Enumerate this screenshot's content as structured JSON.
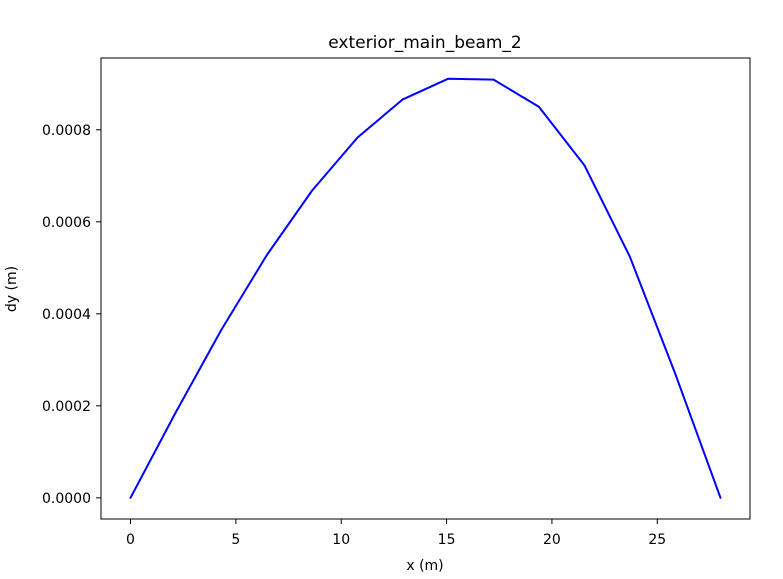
{
  "chart_data": {
    "type": "line",
    "title": "exterior_main_beam_2",
    "xlabel": "x (m)",
    "ylabel": "dy (m)",
    "xlim": [
      -1.4,
      29.4
    ],
    "ylim": [
      -4.6e-05,
      0.000956
    ],
    "xticks": [
      0,
      5,
      10,
      15,
      20,
      25
    ],
    "xtick_labels": [
      "0",
      "5",
      "10",
      "15",
      "20",
      "25"
    ],
    "yticks": [
      0.0,
      0.0002,
      0.0004,
      0.0006,
      0.0008
    ],
    "ytick_labels": [
      "0.0000",
      "0.0002",
      "0.0004",
      "0.0006",
      "0.0008"
    ],
    "grid": false,
    "series": [
      {
        "color": "#0000ff",
        "x": [
          0.0,
          2.15,
          4.31,
          6.46,
          8.62,
          10.77,
          12.92,
          15.08,
          17.23,
          19.38,
          21.54,
          23.69,
          25.85,
          28.0
        ],
        "y": [
          0.0,
          0.000186,
          0.000365,
          0.000527,
          0.000668,
          0.000783,
          0.000866,
          0.000911,
          0.000909,
          0.00085,
          0.000723,
          0.000525,
          0.00027,
          0.0
        ]
      }
    ]
  }
}
